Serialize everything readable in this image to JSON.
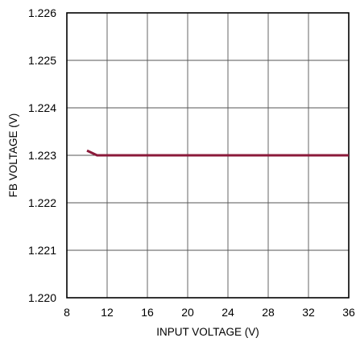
{
  "chart_data": {
    "type": "line",
    "xlabel": "INPUT VOLTAGE (V)",
    "ylabel": "FB VOLTAGE (V)",
    "xlim": [
      8,
      36
    ],
    "ylim": [
      1.22,
      1.226
    ],
    "x_ticks": [
      "8",
      "12",
      "16",
      "20",
      "24",
      "28",
      "32",
      "36"
    ],
    "y_ticks": [
      "1.220",
      "1.221",
      "1.222",
      "1.223",
      "1.224",
      "1.225",
      "1.226"
    ],
    "grid": true,
    "series": [
      {
        "color": "#8b1a3a",
        "x": [
          10,
          11,
          12,
          16,
          20,
          24,
          28,
          32,
          36
        ],
        "y": [
          1.2231,
          1.223,
          1.223,
          1.223,
          1.223,
          1.223,
          1.223,
          1.223,
          1.223
        ]
      }
    ]
  }
}
